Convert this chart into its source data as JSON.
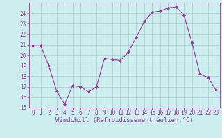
{
  "x": [
    0,
    1,
    2,
    3,
    4,
    5,
    6,
    7,
    8,
    9,
    10,
    11,
    12,
    13,
    14,
    15,
    16,
    17,
    18,
    19,
    20,
    21,
    22,
    23
  ],
  "y": [
    20.9,
    20.9,
    19.0,
    16.6,
    15.3,
    17.1,
    17.0,
    16.5,
    17.0,
    19.7,
    19.6,
    19.5,
    20.3,
    21.7,
    23.2,
    24.1,
    24.2,
    24.5,
    24.6,
    23.8,
    21.2,
    18.2,
    17.9,
    16.7
  ],
  "line_color": "#993399",
  "marker": "D",
  "marker_size": 2.0,
  "bg_color": "#cceeee",
  "grid_color": "#aacccc",
  "xlabel": "Windchill (Refroidissement éolien,°C)",
  "ylim": [
    15,
    25
  ],
  "xlim": [
    -0.5,
    23.5
  ],
  "yticks": [
    15,
    16,
    17,
    18,
    19,
    20,
    21,
    22,
    23,
    24
  ],
  "xticks": [
    0,
    1,
    2,
    3,
    4,
    5,
    6,
    7,
    8,
    9,
    10,
    11,
    12,
    13,
    14,
    15,
    16,
    17,
    18,
    19,
    20,
    21,
    22,
    23
  ],
  "tick_color": "#993399",
  "label_color": "#993399",
  "tick_fontsize": 5.5,
  "xlabel_fontsize": 6.5,
  "linewidth": 0.8
}
